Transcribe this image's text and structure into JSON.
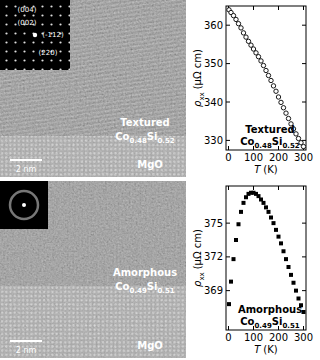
{
  "figure": {
    "panels": [
      {
        "material": "Textured",
        "formula": [
          [
            "Co",
            "0.48"
          ],
          [
            "Si",
            "0.52"
          ]
        ],
        "substrate": "MgO",
        "scale_bar": "2 nm",
        "fft_labels": [
          "(004)",
          "(002)",
          "(-112)",
          "(220)"
        ]
      },
      {
        "material": "Amorphous",
        "formula": [
          [
            "Co",
            "0.49"
          ],
          [
            "Si",
            "0.51"
          ]
        ],
        "substrate": "MgO",
        "scale_bar": "2 nm"
      }
    ]
  },
  "chart_data": [
    {
      "type": "scatter",
      "marker": "open_circle",
      "color": "#000000",
      "xlabel": {
        "symbol": "T",
        "unit": "(K)"
      },
      "ylabel": {
        "symbol": "ρ",
        "subscript": "xx",
        "unit": "(μΩ cm)"
      },
      "annotation": {
        "material": "Textured",
        "formula": [
          [
            "Co",
            "0.48"
          ],
          [
            "Si",
            "0.52"
          ]
        ]
      },
      "x": [
        2,
        10,
        20,
        30,
        40,
        50,
        60,
        70,
        80,
        90,
        100,
        110,
        120,
        130,
        140,
        150,
        160,
        170,
        180,
        190,
        200,
        210,
        220,
        230,
        240,
        250,
        260,
        270,
        280,
        290,
        300
      ],
      "values": [
        364.0,
        363.3,
        362.5,
        361.5,
        360.4,
        359.3,
        358.0,
        356.9,
        355.8,
        354.8,
        353.8,
        352.8,
        351.8,
        350.7,
        349.5,
        348.2,
        346.9,
        345.6,
        344.2,
        342.8,
        341.3,
        339.9,
        338.5,
        337.1,
        335.7,
        334.3,
        333.0,
        331.7,
        330.5,
        329.4,
        328.4
      ],
      "xlim": [
        -10,
        310
      ],
      "xticks": [
        0,
        100,
        200,
        300
      ],
      "ylim": [
        327.5,
        365
      ],
      "yticks": [
        330,
        340,
        350,
        360
      ]
    },
    {
      "type": "scatter",
      "marker": "square",
      "color": "#000000",
      "xlabel": {
        "symbol": "T",
        "unit": "(K)"
      },
      "ylabel": {
        "symbol": "ρ",
        "subscript": "xx",
        "unit": "(μΩ cm)"
      },
      "annotation": {
        "material": "Amorphous",
        "formula": [
          [
            "Co",
            "0.49"
          ],
          [
            "Si",
            "0.51"
          ]
        ]
      },
      "x": [
        2,
        10,
        20,
        30,
        40,
        50,
        60,
        70,
        80,
        90,
        100,
        110,
        120,
        130,
        140,
        150,
        160,
        170,
        180,
        190,
        200,
        210,
        220,
        230,
        240,
        250,
        260,
        270,
        280,
        290,
        300
      ],
      "values": [
        367.8,
        369.8,
        371.8,
        373.5,
        374.9,
        376.0,
        376.8,
        377.3,
        377.6,
        377.7,
        377.7,
        377.6,
        377.4,
        377.1,
        376.8,
        376.4,
        376.0,
        375.5,
        375.0,
        374.4,
        373.8,
        373.2,
        372.5,
        371.8,
        371.1,
        370.4,
        369.7,
        369.0,
        368.3,
        367.7,
        367.1
      ],
      "xlim": [
        -10,
        310
      ],
      "xticks": [
        0,
        100,
        200,
        300
      ],
      "ylim": [
        365.5,
        378.3
      ],
      "yticks": [
        369,
        372,
        375
      ]
    }
  ]
}
